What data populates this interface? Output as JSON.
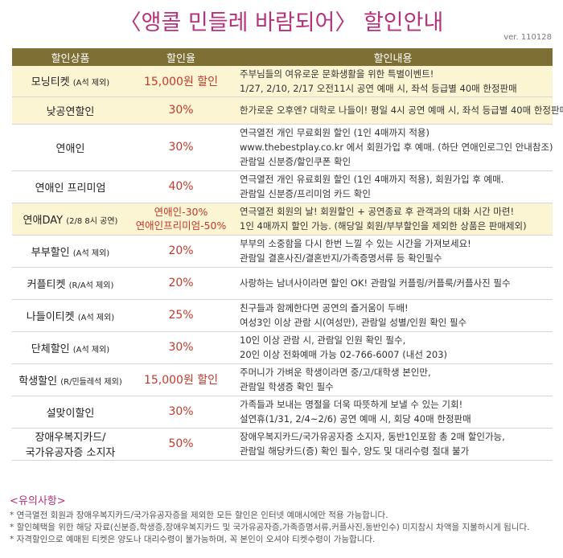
{
  "title": "〈앵콜 민들레 바람되어〉 할인안내",
  "version": "ver. 110128",
  "table": {
    "headers": [
      "할인상품",
      "할인율",
      "할인내용"
    ],
    "rows": [
      {
        "name": "모닝티켓",
        "note": "(A석 제외)",
        "rate": "15,000원 할인",
        "info": [
          "주부님들의 여유로운 문화생활을 위한 특별이벤트!",
          "1/27, 2/10, 2/17 오전11시 공연 예매 시, 좌석 등급별 40매 한정판매"
        ],
        "highlight": true
      },
      {
        "name": "낮공연할인",
        "note": "",
        "rate": "30%",
        "info": [
          "한가로운 오후엔? 대학로 나들이! 평일 4시 공연 예매 시, 좌석 등급별 40매 한정판매"
        ],
        "highlight": true
      },
      {
        "name": "연애인",
        "note": "",
        "rate": "30%",
        "info": [
          "연극열전 개인 무료회원 할인 (1인 4매까지 적용)",
          "www.thebestplay.co.kr 에서 회원가입 후 예매. (하단 연애인로그인 안내참조)",
          "관람일 신분증/할인쿠폰 확인"
        ],
        "highlight": false
      },
      {
        "name": "연애인 프리미엄",
        "note": "",
        "rate": "40%",
        "info": [
          "연극열전 개인 유료회원 할인 (1인 4매까지 적용), 회원가입 후 예매.",
          "관람일 신분증/프리미엄 카드 확인"
        ],
        "highlight": false
      },
      {
        "name": "연애DAY",
        "note": "(2/8 8시 공연)",
        "rate": "연애인-30%",
        "rate2": "연애인프리미엄-50%",
        "info": [
          "연극열전 회원의 날! 회원할인 + 공연종료 후 관객과의 대화 시간 마련!",
          "1인 4매까지 할인 가능. (해당일 회원/부부할인을 제외한 상품은 판매제외)"
        ],
        "highlight": true
      },
      {
        "name": "부부할인",
        "note": "(A석 제외)",
        "rate": "20%",
        "info": [
          "부부의 소중함을 다시 한번 느낄 수 있는 시간을 가져보세요!",
          "관람일 결혼사진/결혼반지/가족증명서류 등 확인필수"
        ],
        "highlight": false
      },
      {
        "name": "커플티켓",
        "note": "(R/A석 제외)",
        "rate": "20%",
        "info": [
          "사랑하는 남녀사이라면 할인 OK! 관람일 커플링/커플룩/커플사진 필수"
        ],
        "highlight": false
      },
      {
        "name": "나들이티켓",
        "note": "(A석 제외)",
        "rate": "25%",
        "info": [
          "친구들과 함께한다면 공연의 즐거움이 두배!",
          "여성3인 이상 관람 시(여성만), 관람일 성별/인원 확인 필수"
        ],
        "highlight": false
      },
      {
        "name": "단체할인",
        "note": "(A석 제외)",
        "rate": "30%",
        "info": [
          "10인 이상 관람 시, 관람일 인원 확인 필수,",
          "20인 이상 전화예매 가능 02-766-6007 (내선 203)"
        ],
        "highlight": false
      },
      {
        "name": "학생할인",
        "note": "(R/민들레석 제외)",
        "rate": "15,000원 할인",
        "info": [
          "주머니가 가벼운 학생이라면 중/고/대학생 본인만,",
          "관람일 학생증 확인 필수"
        ],
        "highlight": false
      },
      {
        "name": "설맞이할인",
        "note": "",
        "rate": "30%",
        "info": [
          "가족들과 보내는 명절을 더욱 따뜻하게 보낼 수 있는 기회!",
          "설연휴(1/31, 2/4~2/6) 공연 예매 시, 회당 40매 한정판매"
        ],
        "highlight": false
      },
      {
        "name": "장애우복지카드/",
        "name2": "국가유공자증 소지자",
        "note": "",
        "rate": "50%",
        "info": [
          "장애우복지카드/국가유공자증 소지자, 동반1인포함 총 2매 할인가능,",
          "관람일 해당카드(증) 확인 필수, 양도 및 대리수령 절대 불가"
        ],
        "highlight": false
      }
    ]
  },
  "notes": {
    "heading": "<유의사항>",
    "lines": [
      "* 연극열전 회원과 장애우복지카드/국가유공자증을 제외한 모든 할인은 인터넷 예매시에만 적용 가능합니다.",
      "* 할인혜택을 위한 해당 자료(신분증,학생증,장애우복지카드 및 국가유공자증,가족증명서류,커플사진,동반인수) 미지참시 차액을 지불하시게 됩니다.",
      "* 자격할인으로 예매된 티켓은 양도나 대리수령이 불가능하며, 꼭 본인이 오셔야 티켓수령이 가능합니다."
    ]
  },
  "colors": {
    "title": "#b5327a",
    "header_bg": "#7e7034",
    "rate": "#c0392b",
    "highlight_bg": "#fcf5d4"
  }
}
